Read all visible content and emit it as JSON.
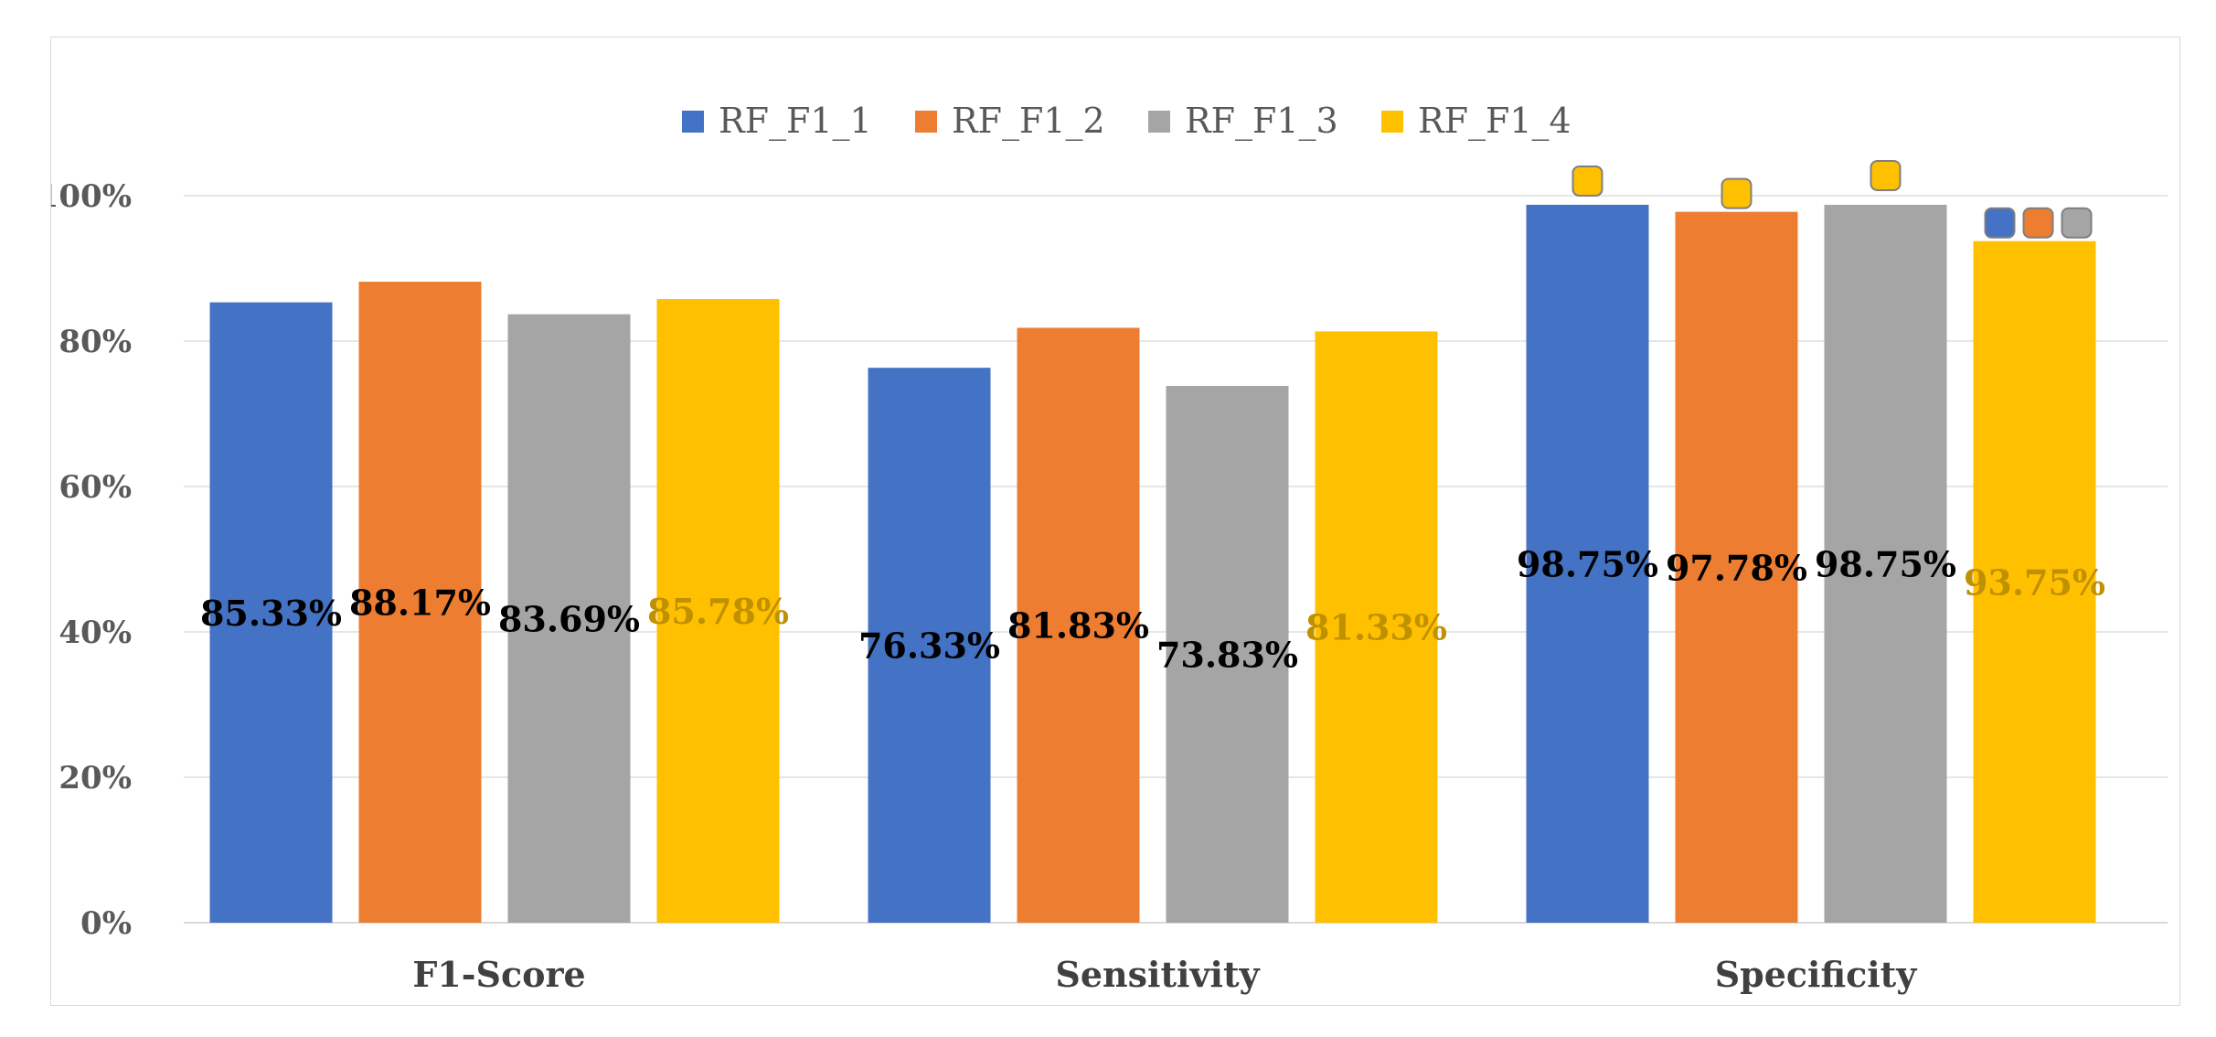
{
  "chart_data": {
    "type": "bar",
    "title": "",
    "xlabel": "",
    "ylabel": "",
    "categories": [
      "F1-Score",
      "Sensitivity",
      "Specificity"
    ],
    "series": [
      {
        "name": "RF_F1_1",
        "color": "#4472C4",
        "values": [
          85.33,
          76.33,
          98.75
        ],
        "labels": [
          "85.33%",
          "76.33%",
          "98.75%"
        ],
        "label_color": "#000000"
      },
      {
        "name": "RF_F1_2",
        "color": "#ED7D31",
        "values": [
          88.17,
          81.83,
          97.78
        ],
        "labels": [
          "88.17%",
          "81.83%",
          "97.78%"
        ],
        "label_color": "#000000"
      },
      {
        "name": "RF_F1_3",
        "color": "#A5A5A5",
        "values": [
          83.69,
          73.83,
          98.75
        ],
        "labels": [
          "83.69%",
          "73.83%",
          "98.75%"
        ],
        "label_color": "#000000"
      },
      {
        "name": "RF_F1_4",
        "color": "#FFC000",
        "values": [
          85.78,
          81.33,
          93.75
        ],
        "labels": [
          "85.78%",
          "81.33%",
          "93.75%"
        ],
        "label_color": "#BF9000"
      }
    ],
    "yticks": [
      "0%",
      "20%",
      "40%",
      "60%",
      "80%",
      "100%"
    ],
    "ylim": [
      0,
      100
    ],
    "grid": true,
    "legend_position": "top-center"
  }
}
